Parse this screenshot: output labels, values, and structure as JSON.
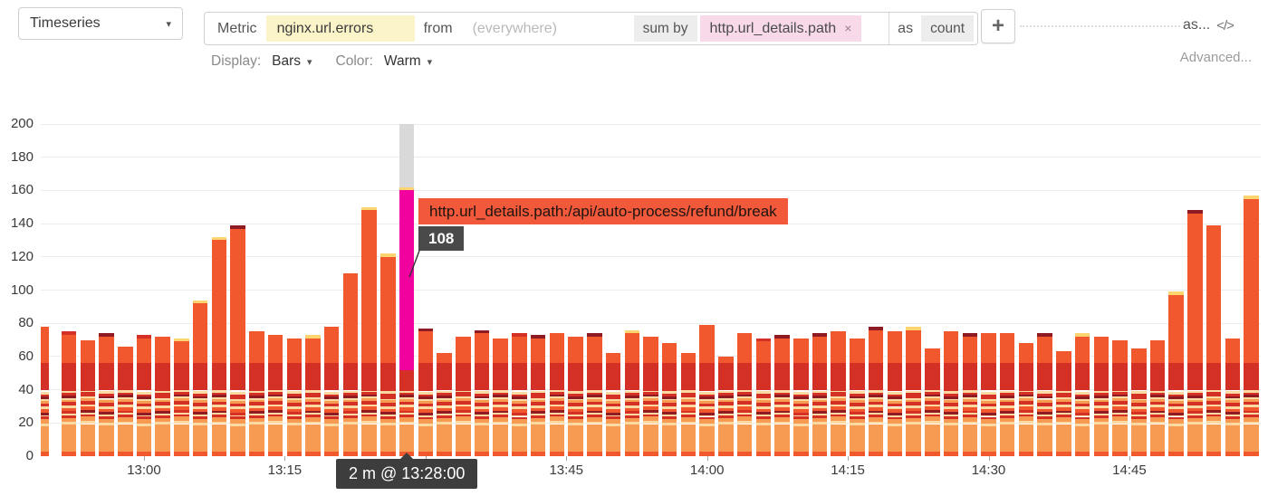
{
  "header": {
    "visualization_selector": {
      "label": "Timeseries"
    },
    "query": {
      "metric_label": "Metric",
      "metric_value": "nginx.url.errors",
      "from_label": "from",
      "from_placeholder": "(everywhere)",
      "sum_by_label": "sum by",
      "sum_by_tag": "http.url_details.path",
      "as_label": "as",
      "as_value": "count"
    },
    "as_link": "as...",
    "advanced_link": "Advanced...",
    "display": {
      "label": "Display:",
      "value": "Bars"
    },
    "color": {
      "label": "Color:",
      "value": "Warm"
    }
  },
  "icons": {
    "chevron_down": "▾",
    "plus": "+",
    "close": "×",
    "code": "</>"
  },
  "tooltip": {
    "series_label": "http.url_details.path:/api/auto-process/refund/break",
    "value": "108",
    "time_label": "2 m @ 13:28:00"
  },
  "chart_data": {
    "type": "bar",
    "stacked": true,
    "stacked_by": "http.url_details.path",
    "metric": "nginx.url.errors",
    "ylim": [
      0,
      200
    ],
    "y_ticks": [
      0,
      20,
      40,
      60,
      80,
      100,
      120,
      140,
      160,
      180,
      200
    ],
    "x_tick_labels": [
      "13:00",
      "13:15",
      "13:30",
      "13:45",
      "14:00",
      "14:15",
      "14:30",
      "14:45"
    ],
    "start_time": "12:50",
    "interval_minutes": 2,
    "palette": {
      "orange": "#f1582d",
      "light_orange": "#f89b52",
      "cream": "#fcd9a0",
      "red": "#d53026",
      "maroon": "#8e1b24",
      "yellow": "#fcd470",
      "highlight_magenta": "#f1019d",
      "hover_band_grey": "#d9d9d9",
      "gridline": "#ececec"
    },
    "bars": {
      "times": [
        "12:50",
        "12:52",
        "12:54",
        "12:56",
        "12:58",
        "13:00",
        "13:02",
        "13:04",
        "13:06",
        "13:08",
        "13:10",
        "13:12",
        "13:14",
        "13:16",
        "13:18",
        "13:20",
        "13:22",
        "13:24",
        "13:26",
        "13:28",
        "13:30",
        "13:32",
        "13:34",
        "13:36",
        "13:38",
        "13:40",
        "13:42",
        "13:44",
        "13:46",
        "13:48",
        "13:50",
        "13:52",
        "13:54",
        "13:56",
        "13:58",
        "14:00",
        "14:02",
        "14:04",
        "14:06",
        "14:08",
        "14:10",
        "14:12",
        "14:14",
        "14:16",
        "14:18",
        "14:20",
        "14:22",
        "14:24",
        "14:26",
        "14:28",
        "14:30",
        "14:32",
        "14:34",
        "14:36",
        "14:38",
        "14:40",
        "14:42",
        "14:44",
        "14:46",
        "14:48",
        "14:50",
        "14:52",
        "14:54",
        "14:56",
        "14:58"
      ],
      "totals": [
        78,
        75,
        70,
        74,
        66,
        73,
        72,
        71,
        94,
        132,
        139,
        75,
        73,
        71,
        73,
        78,
        110,
        150,
        122,
        162,
        77,
        62,
        72,
        76,
        71,
        74,
        73,
        74,
        72,
        74,
        62,
        76,
        72,
        68,
        62,
        79,
        60,
        74,
        71,
        73,
        71,
        74,
        75,
        71,
        78,
        75,
        78,
        65,
        75,
        74,
        74,
        74,
        68,
        74,
        63,
        74,
        72,
        70,
        65,
        70,
        99,
        148,
        139,
        71,
        157
      ],
      "caps": [
        "none",
        "red",
        "none",
        "maroon",
        "none",
        "red",
        "none",
        "yellow",
        "yellow",
        "yellow",
        "maroon",
        "none",
        "none",
        "none",
        "yellow",
        "none",
        "none",
        "yellow",
        "yellow",
        "yellow",
        "maroon",
        "none",
        "none",
        "maroon",
        "none",
        "red",
        "maroon",
        "none",
        "none",
        "maroon",
        "none",
        "yellow",
        "none",
        "none",
        "none",
        "none",
        "none",
        "none",
        "red",
        "maroon",
        "none",
        "maroon",
        "none",
        "none",
        "maroon",
        "none",
        "yellow",
        "none",
        "none",
        "maroon",
        "none",
        "none",
        "none",
        "maroon",
        "none",
        "yellow",
        "none",
        "none",
        "none",
        "none",
        "yellow",
        "maroon",
        "none",
        "none",
        "yellow"
      ]
    },
    "highlight": {
      "index": 19,
      "time": "13:28:00",
      "bucket": "2 m",
      "series": "http.url_details.path:/api/auto-process/refund/break",
      "value": 108,
      "stack_below": 52,
      "bar_total": 162,
      "cap": "yellow"
    }
  }
}
